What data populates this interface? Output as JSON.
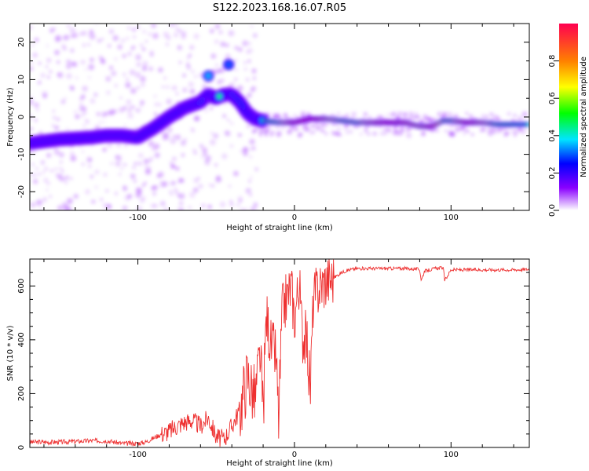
{
  "title": "S122.2023.168.16.07.R05",
  "chart_data": [
    {
      "type": "heatmap",
      "xlabel": "Height of straight line (km)",
      "ylabel": "Frequency (Hz)",
      "xlim": [
        -169,
        150
      ],
      "ylim": [
        -25,
        25
      ],
      "x_ticks": [
        -100,
        0,
        100
      ],
      "y_ticks": [
        -20,
        -10,
        0,
        10,
        20
      ],
      "colorbar": {
        "label": "Normalized spectral amplitude",
        "range": [
          0,
          1
        ],
        "ticks": [
          0.0,
          0.2,
          0.4,
          0.6,
          0.8
        ],
        "colors": [
          "#ffffff",
          "#8a00ff",
          "#0000ff",
          "#00e5ff",
          "#00ff00",
          "#ffff00",
          "#ff8000",
          "#ff0050"
        ]
      },
      "ridge": {
        "x": [
          -169,
          -150,
          -130,
          -120,
          -110,
          -100,
          -90,
          -80,
          -70,
          -60,
          -55,
          -50,
          -45,
          -40,
          -35,
          -30,
          -25,
          -20,
          -10,
          0,
          10,
          20,
          30,
          40,
          50,
          60,
          70,
          80,
          88,
          95,
          100,
          110,
          120,
          130,
          140,
          150
        ],
        "y": [
          -7,
          -6,
          -5.5,
          -5,
          -5,
          -5.5,
          -3,
          0,
          2.5,
          4,
          6,
          5,
          6,
          6,
          4,
          1,
          -0.5,
          -1,
          -1.5,
          -1.5,
          -0.5,
          -0.5,
          -1,
          -1.5,
          -1.5,
          -1.5,
          -1.5,
          -2.5,
          -2.5,
          -1,
          -1,
          -1.5,
          -1.5,
          -2,
          -2,
          -2
        ],
        "amplitude": [
          0.25,
          0.3,
          0.35,
          0.4,
          0.35,
          0.35,
          0.4,
          0.45,
          0.55,
          0.5,
          0.5,
          0.45,
          0.45,
          0.5,
          0.45,
          0.4,
          0.45,
          0.5,
          0.6,
          0.85,
          0.95,
          0.7,
          0.6,
          0.6,
          0.75,
          0.9,
          0.8,
          0.7,
          0.85,
          0.6,
          0.6,
          0.85,
          0.7,
          0.55,
          0.5,
          0.45
        ]
      },
      "blobs": [
        {
          "x": -55,
          "y": 11,
          "amp": 0.35
        },
        {
          "x": -42,
          "y": 14,
          "amp": 0.3
        },
        {
          "x": -48,
          "y": 5.5,
          "amp": 0.45
        }
      ]
    },
    {
      "type": "line",
      "xlabel": "Height of straight line (km)",
      "ylabel": "SNR (10 * v/v)",
      "xlim": [
        -169,
        150
      ],
      "ylim": [
        0,
        700
      ],
      "x_ticks": [
        -100,
        0,
        100
      ],
      "y_ticks": [
        0,
        200,
        400,
        600
      ],
      "color": "#ee3030",
      "x": [
        -169,
        -150,
        -130,
        -120,
        -110,
        -100,
        -95,
        -90,
        -85,
        -80,
        -75,
        -70,
        -65,
        -60,
        -55,
        -50,
        -45,
        -40,
        -35,
        -30,
        -25,
        -22,
        -20,
        -18,
        -15,
        -12,
        -10,
        -8,
        -5,
        -2,
        0,
        3,
        5,
        8,
        10,
        12,
        15,
        18,
        20,
        25,
        30,
        35,
        40,
        50,
        60,
        70,
        80,
        81,
        83,
        90,
        95,
        96,
        100,
        110,
        120,
        130,
        140,
        150
      ],
      "y": [
        20,
        20,
        25,
        25,
        15,
        15,
        20,
        35,
        50,
        60,
        80,
        95,
        100,
        80,
        110,
        40,
        30,
        80,
        140,
        270,
        180,
        350,
        130,
        500,
        380,
        350,
        100,
        500,
        560,
        600,
        480,
        620,
        420,
        400,
        200,
        550,
        590,
        610,
        620,
        630,
        650,
        660,
        665,
        665,
        665,
        665,
        662,
        620,
        655,
        665,
        668,
        620,
        660,
        660,
        660,
        660,
        660,
        662
      ]
    }
  ]
}
